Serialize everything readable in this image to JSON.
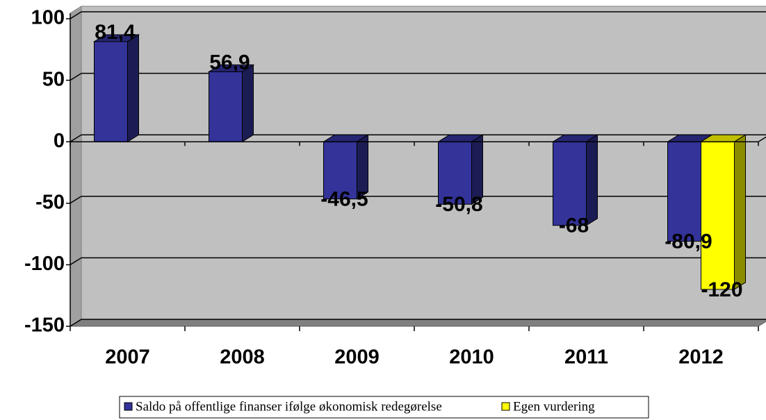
{
  "chart_data": {
    "type": "bar3d",
    "categories": [
      "2007",
      "2008",
      "2009",
      "2010",
      "2011",
      "2012"
    ],
    "series": [
      {
        "name": "Saldo på offentlige finanser ifølge økonomisk redegørelse",
        "color": "#333399",
        "values": [
          81.4,
          56.9,
          -46.5,
          -50.8,
          -68,
          -80.9
        ],
        "value_labels": [
          "81,4",
          "56,9",
          "-46,5",
          "-50,8",
          "-68",
          "-80,9"
        ]
      },
      {
        "name": "Egen vurdering",
        "color": "#ffff00",
        "values": [
          null,
          null,
          null,
          null,
          null,
          -120
        ],
        "value_labels": [
          null,
          null,
          null,
          null,
          null,
          "-120"
        ]
      }
    ],
    "ylim": [
      -150,
      100
    ],
    "yticks": [
      -150,
      -100,
      -50,
      0,
      50,
      100
    ],
    "grid": true,
    "legend": "bottom"
  }
}
